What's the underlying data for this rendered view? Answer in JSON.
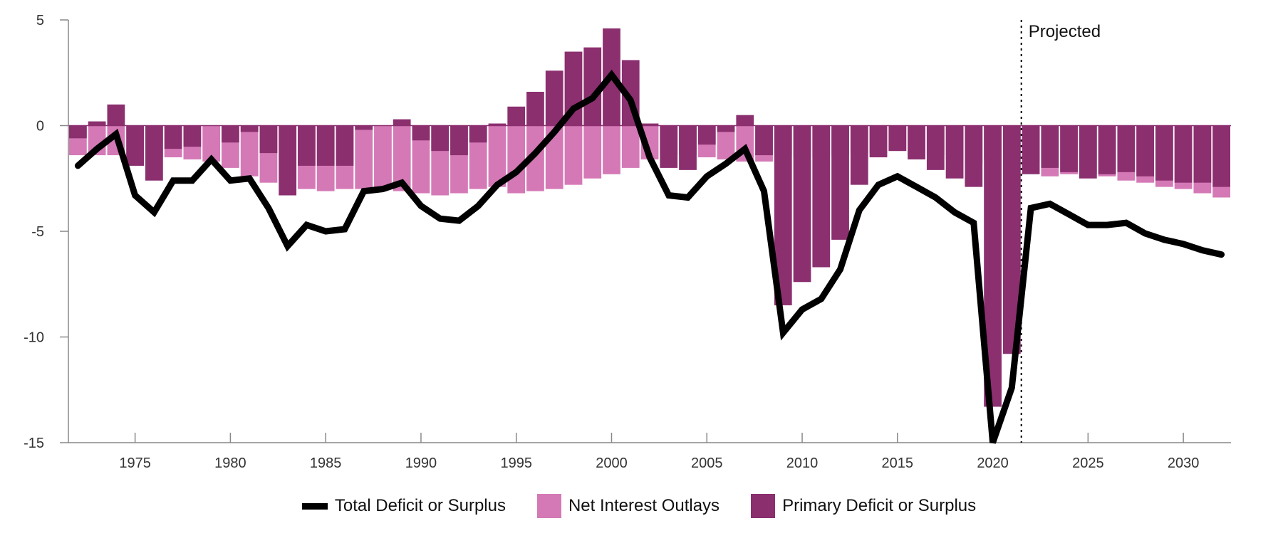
{
  "chart_data": {
    "type": "bar",
    "years": [
      1972,
      1973,
      1974,
      1975,
      1976,
      1977,
      1978,
      1979,
      1980,
      1981,
      1982,
      1983,
      1984,
      1985,
      1986,
      1987,
      1988,
      1989,
      1990,
      1991,
      1992,
      1993,
      1994,
      1995,
      1996,
      1997,
      1998,
      1999,
      2000,
      2001,
      2002,
      2003,
      2004,
      2005,
      2006,
      2007,
      2008,
      2009,
      2010,
      2011,
      2012,
      2013,
      2014,
      2015,
      2016,
      2017,
      2018,
      2019,
      2020,
      2021,
      2022,
      2023,
      2024,
      2025,
      2026,
      2027,
      2028,
      2029,
      2030,
      2031,
      2032
    ],
    "series": [
      {
        "name": "Total Deficit or Surplus",
        "color": "#000000",
        "values": [
          -1.9,
          -1.1,
          -0.4,
          -3.3,
          -4.1,
          -2.6,
          -2.6,
          -1.6,
          -2.6,
          -2.5,
          -3.9,
          -5.7,
          -4.7,
          -5.0,
          -4.9,
          -3.1,
          -3.0,
          -2.7,
          -3.8,
          -4.4,
          -4.5,
          -3.8,
          -2.8,
          -2.2,
          -1.3,
          -0.3,
          0.8,
          1.3,
          2.4,
          1.2,
          -1.5,
          -3.3,
          -3.4,
          -2.4,
          -1.8,
          -1.1,
          -3.1,
          -9.8,
          -8.7,
          -8.2,
          -6.8,
          -4.0,
          -2.8,
          -2.4,
          -2.9,
          -3.4,
          -4.1,
          -4.6,
          -15.0,
          -12.4,
          -3.9,
          -3.7,
          -4.2,
          -4.7,
          -4.7,
          -4.6,
          -5.1,
          -5.4,
          -5.6,
          -5.9,
          -6.1
        ]
      },
      {
        "name": "Net Interest Outlays",
        "color": "#d479b6",
        "values": [
          -1.4,
          -1.4,
          -1.4,
          -1.5,
          -1.5,
          -1.5,
          -1.6,
          -1.7,
          -2.0,
          -2.4,
          -2.7,
          -2.6,
          -3.0,
          -3.1,
          -3.0,
          -3.0,
          -3.0,
          -3.1,
          -3.2,
          -3.3,
          -3.2,
          -3.0,
          -2.9,
          -3.2,
          -3.1,
          -3.0,
          -2.8,
          -2.5,
          -2.3,
          -2.0,
          -1.6,
          -1.4,
          -1.4,
          -1.5,
          -1.6,
          -1.7,
          -1.7,
          -1.4,
          -1.5,
          -1.5,
          -1.4,
          -1.3,
          -1.3,
          -1.2,
          -1.4,
          -1.4,
          -1.6,
          -1.8,
          -1.6,
          -1.6,
          -1.7,
          -2.4,
          -2.3,
          -2.3,
          -2.4,
          -2.6,
          -2.7,
          -2.9,
          -3.0,
          -3.2,
          -3.4
        ]
      },
      {
        "name": "Primary Deficit or Surplus",
        "color": "#8b2f6f",
        "values": [
          -0.6,
          0.2,
          1.0,
          -1.9,
          -2.6,
          -1.1,
          -1.0,
          0.0,
          -0.8,
          -0.3,
          -1.3,
          -3.3,
          -1.9,
          -1.9,
          -1.9,
          -0.2,
          0.0,
          0.3,
          -0.7,
          -1.2,
          -1.4,
          -0.8,
          0.1,
          0.9,
          1.6,
          2.6,
          3.5,
          3.7,
          4.6,
          3.1,
          0.1,
          -2.0,
          -2.1,
          -0.9,
          -0.3,
          0.5,
          -1.4,
          -8.5,
          -7.4,
          -6.7,
          -5.4,
          -2.8,
          -1.5,
          -1.2,
          -1.6,
          -2.1,
          -2.5,
          -2.9,
          -13.3,
          -10.8,
          -2.3,
          -2.0,
          -2.2,
          -2.5,
          -2.3,
          -2.2,
          -2.4,
          -2.6,
          -2.7,
          -2.7,
          -2.9
        ]
      }
    ],
    "ylim": [
      -15,
      5
    ],
    "y_ticks": [
      "5",
      "0",
      "-5",
      "-10",
      "-15"
    ],
    "y_tick_values": [
      5,
      0,
      -5,
      -10,
      -15
    ],
    "x_ticks": [
      "1975",
      "1980",
      "1985",
      "1990",
      "1995",
      "2000",
      "2005",
      "2010",
      "2015",
      "2020",
      "2025",
      "2030"
    ],
    "x_tick_values": [
      1975,
      1980,
      1985,
      1990,
      1995,
      2000,
      2005,
      2010,
      2015,
      2020,
      2025,
      2030
    ],
    "projection_start_year": 2021.5,
    "annotation": "Projected",
    "legend_position": "bottom-center",
    "grid": false
  },
  "legend": {
    "total": "Total Deficit or Surplus",
    "interest": "Net Interest Outlays",
    "primary": "Primary Deficit or Surplus"
  }
}
